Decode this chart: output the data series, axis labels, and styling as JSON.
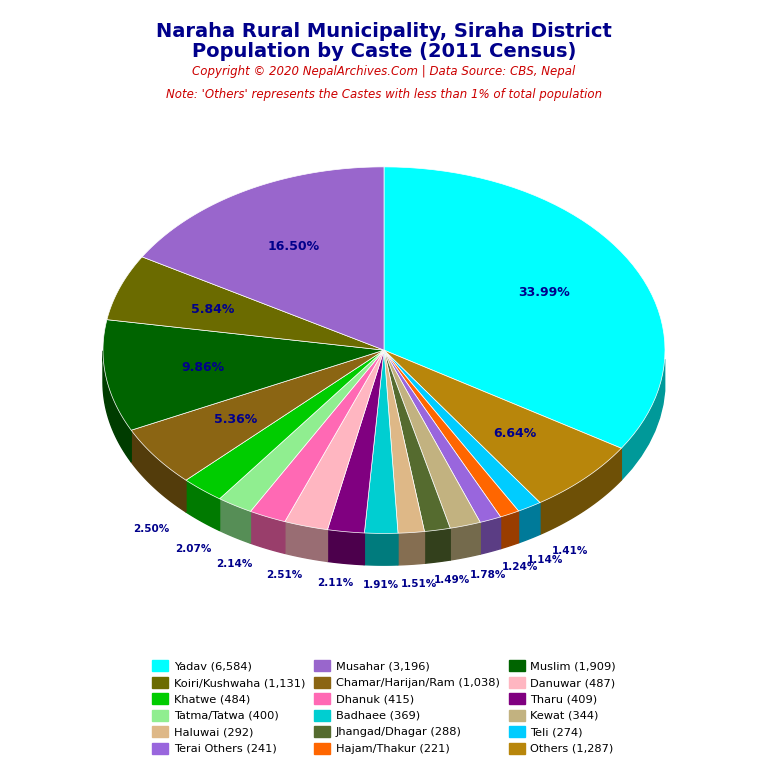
{
  "title_line1": "Naraha Rural Municipality, Siraha District",
  "title_line2": "Population by Caste (2011 Census)",
  "copyright": "Copyright © 2020 NepalArchives.Com | Data Source: CBS, Nepal",
  "note": "Note: 'Others' represents the Castes with less than 1% of total population",
  "slices": [
    {
      "label": "Yadav",
      "value": 6584,
      "color": "#00FFFF",
      "pct": "33.99%"
    },
    {
      "label": "Others",
      "value": 1287,
      "color": "#B8860B",
      "pct": "6.64%"
    },
    {
      "label": "Teli",
      "value": 274,
      "color": "#00CCFF",
      "pct": "1.41%"
    },
    {
      "label": "Hajam/Thakur",
      "value": 221,
      "color": "#FF6600",
      "pct": "1.14%"
    },
    {
      "label": "Terai Others",
      "value": 241,
      "color": "#9966DD",
      "pct": "1.24%"
    },
    {
      "label": "Kewat",
      "value": 344,
      "color": "#C2B280",
      "pct": "1.78%"
    },
    {
      "label": "Jhangad/Dhagar",
      "value": 288,
      "color": "#556B2F",
      "pct": "1.49%"
    },
    {
      "label": "Haluwai",
      "value": 292,
      "color": "#DEB887",
      "pct": "1.51%"
    },
    {
      "label": "Badhaee",
      "value": 369,
      "color": "#00CED1",
      "pct": "1.91%"
    },
    {
      "label": "Tharu",
      "value": 409,
      "color": "#800080",
      "pct": "2.11%"
    },
    {
      "label": "Danuwar",
      "value": 487,
      "color": "#FFB6C1",
      "pct": "2.51%"
    },
    {
      "label": "Dhanuk",
      "value": 415,
      "color": "#FF69B4",
      "pct": "2.14%"
    },
    {
      "label": "Tatma/Tatwa",
      "value": 400,
      "color": "#90EE90",
      "pct": "2.07%"
    },
    {
      "label": "Khatwe",
      "value": 484,
      "color": "#00CC00",
      "pct": "2.50%"
    },
    {
      "label": "Chamar/Harijan/Ram",
      "value": 1038,
      "color": "#8B6513",
      "pct": "5.36%"
    },
    {
      "label": "Muslim",
      "value": 1909,
      "color": "#006400",
      "pct": "9.86%"
    },
    {
      "label": "Koiri/Kushwaha",
      "value": 1131,
      "color": "#6B6B00",
      "pct": "5.84%"
    },
    {
      "label": "Musahar",
      "value": 3196,
      "color": "#9966CC",
      "pct": "16.50%"
    }
  ],
  "legend_entries": [
    {
      "label": "Yadav (6,584)",
      "color": "#00FFFF"
    },
    {
      "label": "Koiri/Kushwaha (1,131)",
      "color": "#6B6B00"
    },
    {
      "label": "Khatwe (484)",
      "color": "#00CC00"
    },
    {
      "label": "Tatma/Tatwa (400)",
      "color": "#90EE90"
    },
    {
      "label": "Haluwai (292)",
      "color": "#DEB887"
    },
    {
      "label": "Terai Others (241)",
      "color": "#9966DD"
    },
    {
      "label": "Musahar (3,196)",
      "color": "#9966CC"
    },
    {
      "label": "Chamar/Harijan/Ram (1,038)",
      "color": "#8B6513"
    },
    {
      "label": "Dhanuk (415)",
      "color": "#FF69B4"
    },
    {
      "label": "Badhaee (369)",
      "color": "#00CED1"
    },
    {
      "label": "Jhangad/Dhagar (288)",
      "color": "#556B2F"
    },
    {
      "label": "Hajam/Thakur (221)",
      "color": "#FF6600"
    },
    {
      "label": "Muslim (1,909)",
      "color": "#006400"
    },
    {
      "label": "Danuwar (487)",
      "color": "#FFB6C1"
    },
    {
      "label": "Tharu (409)",
      "color": "#800080"
    },
    {
      "label": "Kewat (344)",
      "color": "#C2B280"
    },
    {
      "label": "Teli (274)",
      "color": "#00CCFF"
    },
    {
      "label": "Others (1,287)",
      "color": "#B8860B"
    }
  ],
  "title_color": "#00008B",
  "copyright_color": "#CC0000",
  "note_color": "#CC0000",
  "pct_color": "#00008B",
  "bg_color": "#FFFFFF"
}
